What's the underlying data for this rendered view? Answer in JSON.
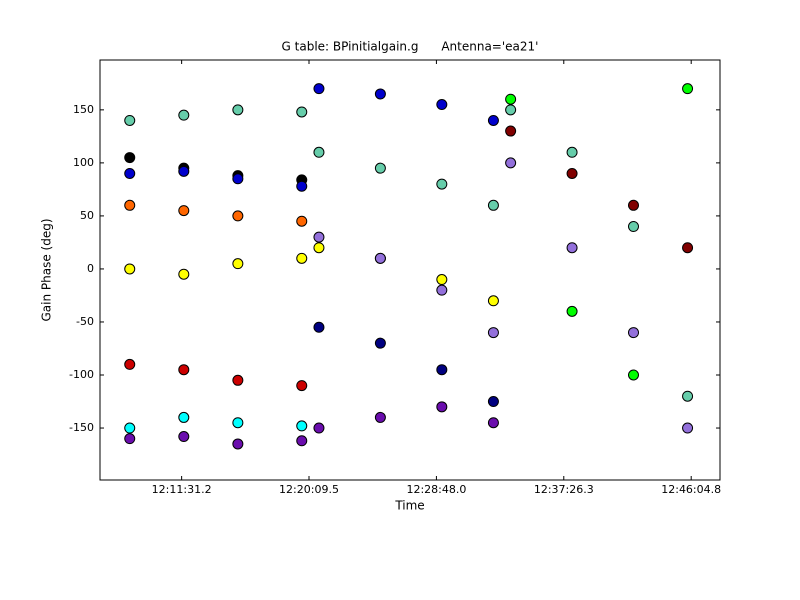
{
  "chart_data": {
    "type": "scatter",
    "title": "G table: BPinitialgain.g      Antenna='ea21'",
    "x_label": "Time",
    "y_label": "Gain Phase (deg)",
    "x": [
      43680,
      43900,
      44120,
      44380,
      44450,
      44700,
      44950,
      45160,
      45230,
      45480,
      45730,
      45950
    ],
    "series": [
      {
        "color": "#000000",
        "values": [
          105,
          95,
          88,
          84,
          null,
          null,
          null,
          null,
          null,
          null,
          null,
          null
        ]
      },
      {
        "color": "#0000cc",
        "values": [
          90,
          92,
          85,
          78,
          170,
          165,
          155,
          140,
          null,
          null,
          null,
          null
        ]
      },
      {
        "color": "#cc0000",
        "values": [
          -90,
          -95,
          -105,
          -110,
          null,
          null,
          null,
          null,
          null,
          null,
          null,
          null
        ]
      },
      {
        "color": "#6a0dad",
        "values": [
          -160,
          -158,
          -165,
          -162,
          -150,
          -140,
          -130,
          -145,
          null,
          null,
          null,
          null
        ]
      },
      {
        "color": "#000080",
        "values": [
          null,
          null,
          null,
          null,
          -55,
          -70,
          -95,
          -125,
          null,
          null,
          null,
          null
        ]
      },
      {
        "color": "#800000",
        "values": [
          null,
          null,
          null,
          null,
          null,
          null,
          null,
          null,
          130,
          90,
          60,
          20
        ]
      },
      {
        "color": "#00ff00",
        "values": [
          null,
          null,
          null,
          null,
          null,
          null,
          null,
          null,
          160,
          -40,
          -100,
          170
        ]
      },
      {
        "color": "#66cdaa",
        "values": [
          140,
          145,
          150,
          148,
          110,
          95,
          80,
          60,
          150,
          110,
          40,
          -120
        ]
      },
      {
        "color": "#00ffff",
        "values": [
          -150,
          -140,
          -145,
          -148,
          null,
          null,
          null,
          null,
          null,
          null,
          null,
          null
        ]
      },
      {
        "color": "#ff6600",
        "values": [
          60,
          55,
          50,
          45,
          null,
          null,
          null,
          null,
          null,
          null,
          null,
          null
        ]
      },
      {
        "color": "#ffff00",
        "values": [
          0,
          -5,
          5,
          10,
          20,
          10,
          -10,
          -30,
          null,
          null,
          null,
          null
        ]
      },
      {
        "color": "#9370db",
        "values": [
          null,
          null,
          null,
          null,
          30,
          10,
          -20,
          -60,
          100,
          20,
          -60,
          -150
        ]
      }
    ],
    "xlim": [
      43559,
      46082
    ],
    "ylim": [
      -199,
      197
    ],
    "xticks": [
      {
        "value": 43891.2,
        "label": "12:11:31.2"
      },
      {
        "value": 44409.5,
        "label": "12:20:09.5"
      },
      {
        "value": 44928.0,
        "label": "12:28:48.0"
      },
      {
        "value": 45446.3,
        "label": "12:37:26.3"
      },
      {
        "value": 45964.8,
        "label": "12:46:04.8"
      }
    ],
    "yticks": [
      -150,
      -100,
      -50,
      0,
      50,
      100,
      150
    ],
    "grid": false
  }
}
